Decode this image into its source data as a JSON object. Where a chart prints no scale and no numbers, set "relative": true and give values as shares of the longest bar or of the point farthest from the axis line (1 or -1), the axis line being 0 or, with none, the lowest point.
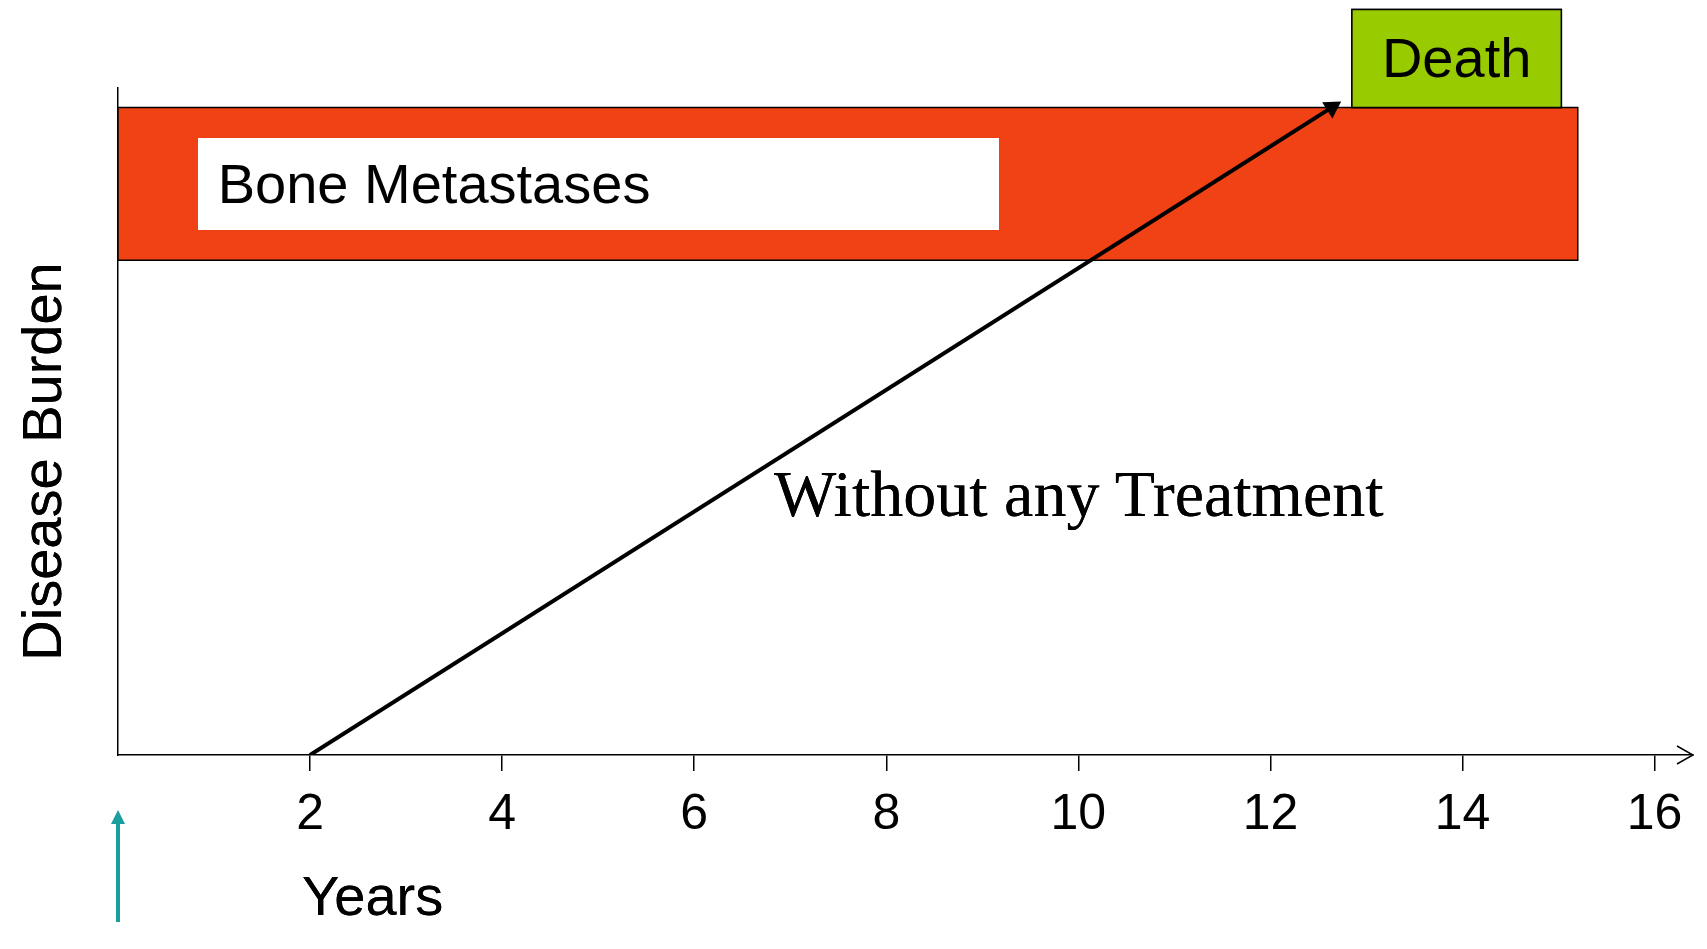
{
  "chart_data": {
    "type": "line",
    "xlabel": "Years",
    "ylabel": "Disease Burden",
    "relative": true,
    "xlim": [
      0,
      16.4
    ],
    "xticks": [
      2,
      4,
      6,
      8,
      10,
      12,
      14,
      16
    ],
    "grid": false,
    "legend": false,
    "line_style": "solid",
    "series": [
      {
        "color": "#000000",
        "x": [
          2,
          12.64
        ],
        "values": [
          0,
          1
        ]
      }
    ],
    "bands": [
      {
        "axis": "y",
        "from": 0.764,
        "to": 1.0,
        "label": "Bone Metastases",
        "color": "#f04214"
      }
    ],
    "annotations": [
      {
        "text": "Death",
        "x": 12.64,
        "y": 1
      },
      "Without any Treatment"
    ]
  }
}
